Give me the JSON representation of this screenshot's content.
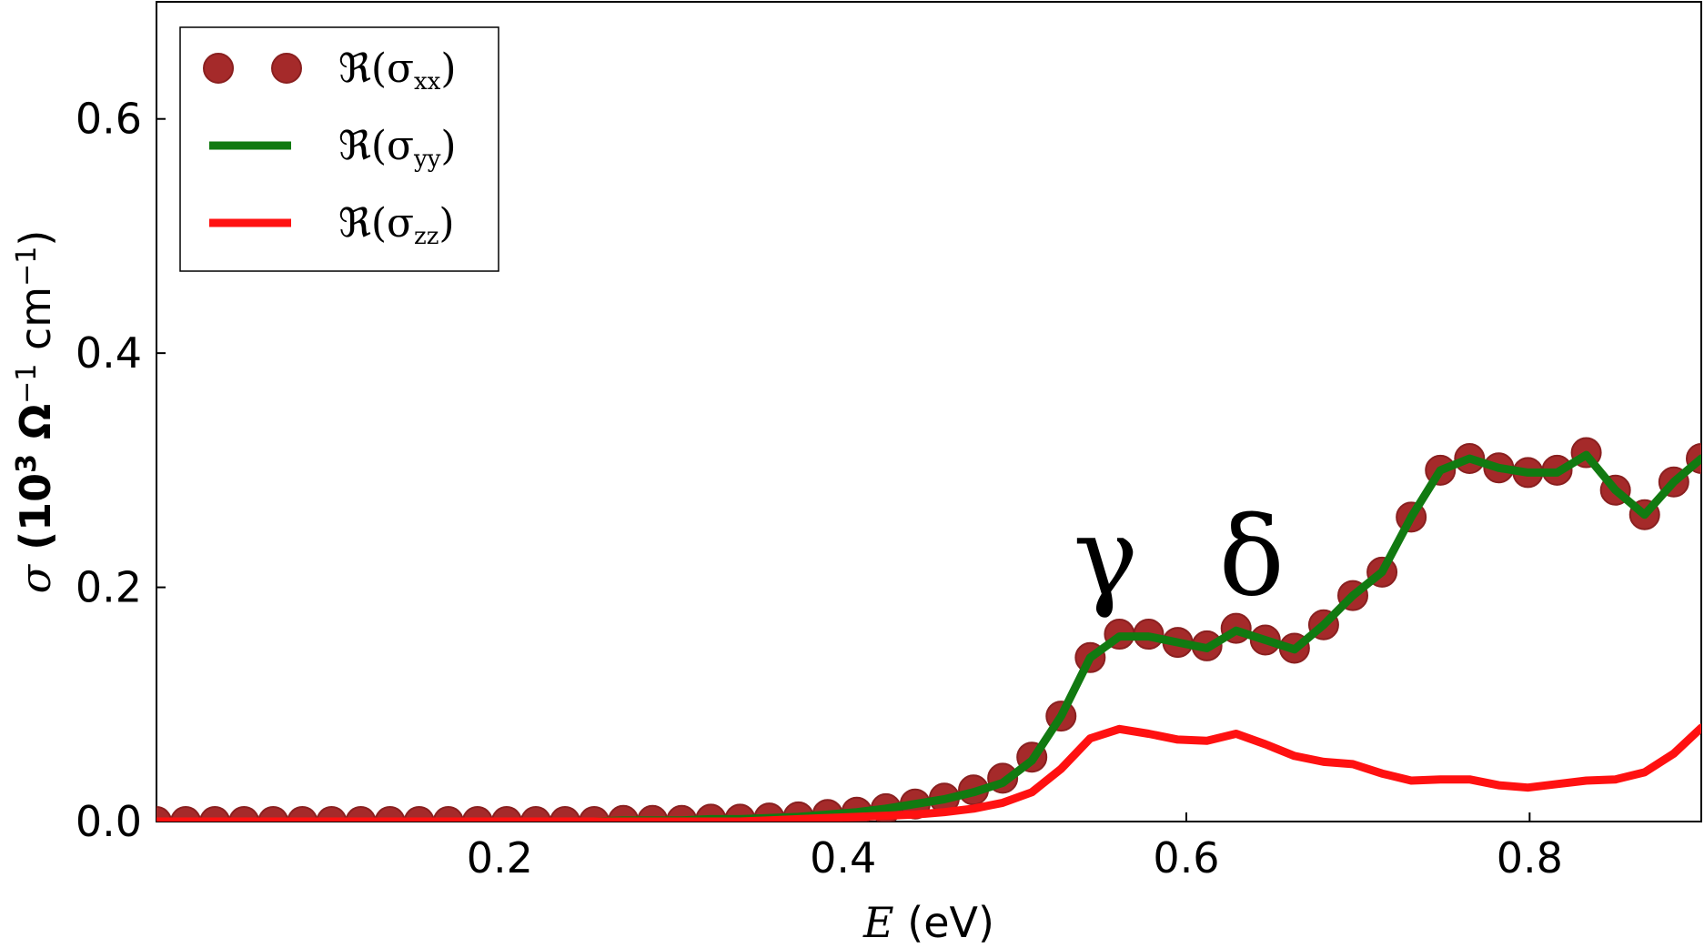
{
  "chart_data": {
    "type": "line",
    "xlabel_var": "E",
    "xlabel_unit": " (eV)",
    "ylabel_var": "σ",
    "ylabel_open": " (10",
    "ylabel_exp": "3",
    "ylabel_omega": " Ω",
    "ylabel_exp2": "−1",
    "ylabel_close": " cm",
    "ylabel_exp3": "−1",
    "ylabel_end": ")",
    "xlim": [
      0.0,
      0.9
    ],
    "ylim": [
      0.0,
      0.7
    ],
    "xticks": [
      0.2,
      0.4,
      0.6,
      0.8
    ],
    "xtick_labels": [
      "0.2",
      "0.4",
      "0.6",
      "0.8"
    ],
    "yticks": [
      0.0,
      0.2,
      0.4,
      0.6
    ],
    "ytick_labels": [
      "0.0",
      "0.2",
      "0.4",
      "0.6"
    ],
    "legend_location": "top-left",
    "x": [
      0.0,
      0.017,
      0.034,
      0.051,
      0.068,
      0.085,
      0.102,
      0.119,
      0.136,
      0.153,
      0.17,
      0.187,
      0.204,
      0.221,
      0.238,
      0.255,
      0.272,
      0.289,
      0.306,
      0.323,
      0.34,
      0.357,
      0.374,
      0.391,
      0.408,
      0.425,
      0.442,
      0.459,
      0.476,
      0.493,
      0.51,
      0.527,
      0.544,
      0.561,
      0.578,
      0.595,
      0.612,
      0.629,
      0.646,
      0.663,
      0.68,
      0.697,
      0.714,
      0.731,
      0.748,
      0.765,
      0.782,
      0.799,
      0.816,
      0.833,
      0.85,
      0.867,
      0.884,
      0.9
    ],
    "series": [
      {
        "name": "Re_xx",
        "style": "markers",
        "color": "#a52a2a",
        "legend_prefix": "ℜ(σ",
        "legend_sub": "xx",
        "legend_suffix": ")",
        "values": [
          0.0,
          0.0,
          0.0,
          0.0,
          0.0,
          0.0,
          0.0,
          0.0,
          0.0,
          0.0,
          0.0,
          0.0,
          0.0,
          0.0,
          0.0,
          0.0,
          0.001,
          0.001,
          0.001,
          0.002,
          0.002,
          0.003,
          0.004,
          0.006,
          0.008,
          0.011,
          0.015,
          0.02,
          0.027,
          0.037,
          0.055,
          0.09,
          0.14,
          0.16,
          0.16,
          0.153,
          0.15,
          0.165,
          0.155,
          0.148,
          0.168,
          0.193,
          0.213,
          0.26,
          0.3,
          0.31,
          0.302,
          0.298,
          0.3,
          0.315,
          0.283,
          0.262,
          0.29,
          0.31
        ]
      },
      {
        "name": "Re_yy",
        "style": "line",
        "color": "#117a11",
        "legend_prefix": "ℜ(σ",
        "legend_sub": "yy",
        "legend_suffix": ")",
        "values": [
          0.0,
          0.0,
          0.0,
          0.0,
          0.0,
          0.0,
          0.0,
          0.0,
          0.0,
          0.0,
          0.0,
          0.0,
          0.0,
          0.0,
          0.0,
          0.0,
          0.001,
          0.001,
          0.001,
          0.002,
          0.002,
          0.003,
          0.004,
          0.006,
          0.008,
          0.011,
          0.015,
          0.019,
          0.025,
          0.033,
          0.052,
          0.09,
          0.14,
          0.158,
          0.158,
          0.153,
          0.148,
          0.163,
          0.155,
          0.147,
          0.168,
          0.193,
          0.213,
          0.26,
          0.3,
          0.31,
          0.302,
          0.298,
          0.298,
          0.313,
          0.283,
          0.262,
          0.29,
          0.31
        ]
      },
      {
        "name": "Re_zz",
        "style": "line",
        "color": "#ff1111",
        "legend_prefix": "ℜ(σ",
        "legend_sub": "zz",
        "legend_suffix": ")",
        "values": [
          0.0,
          0.0,
          0.0,
          0.0,
          0.0,
          0.0,
          0.0,
          0.0,
          0.0,
          0.0,
          0.0,
          0.0,
          0.0,
          0.0,
          0.0,
          0.0,
          0.0,
          0.0,
          0.0,
          0.0,
          0.0,
          0.001,
          0.002,
          0.003,
          0.004,
          0.005,
          0.006,
          0.008,
          0.011,
          0.016,
          0.025,
          0.045,
          0.071,
          0.079,
          0.075,
          0.07,
          0.069,
          0.075,
          0.066,
          0.056,
          0.051,
          0.049,
          0.041,
          0.035,
          0.036,
          0.036,
          0.031,
          0.029,
          0.032,
          0.035,
          0.036,
          0.042,
          0.058,
          0.08
        ]
      }
    ],
    "annotations": [
      {
        "text": "γ",
        "x": 0.553,
        "y": 0.225
      },
      {
        "text": "δ",
        "x": 0.638,
        "y": 0.225
      }
    ]
  }
}
